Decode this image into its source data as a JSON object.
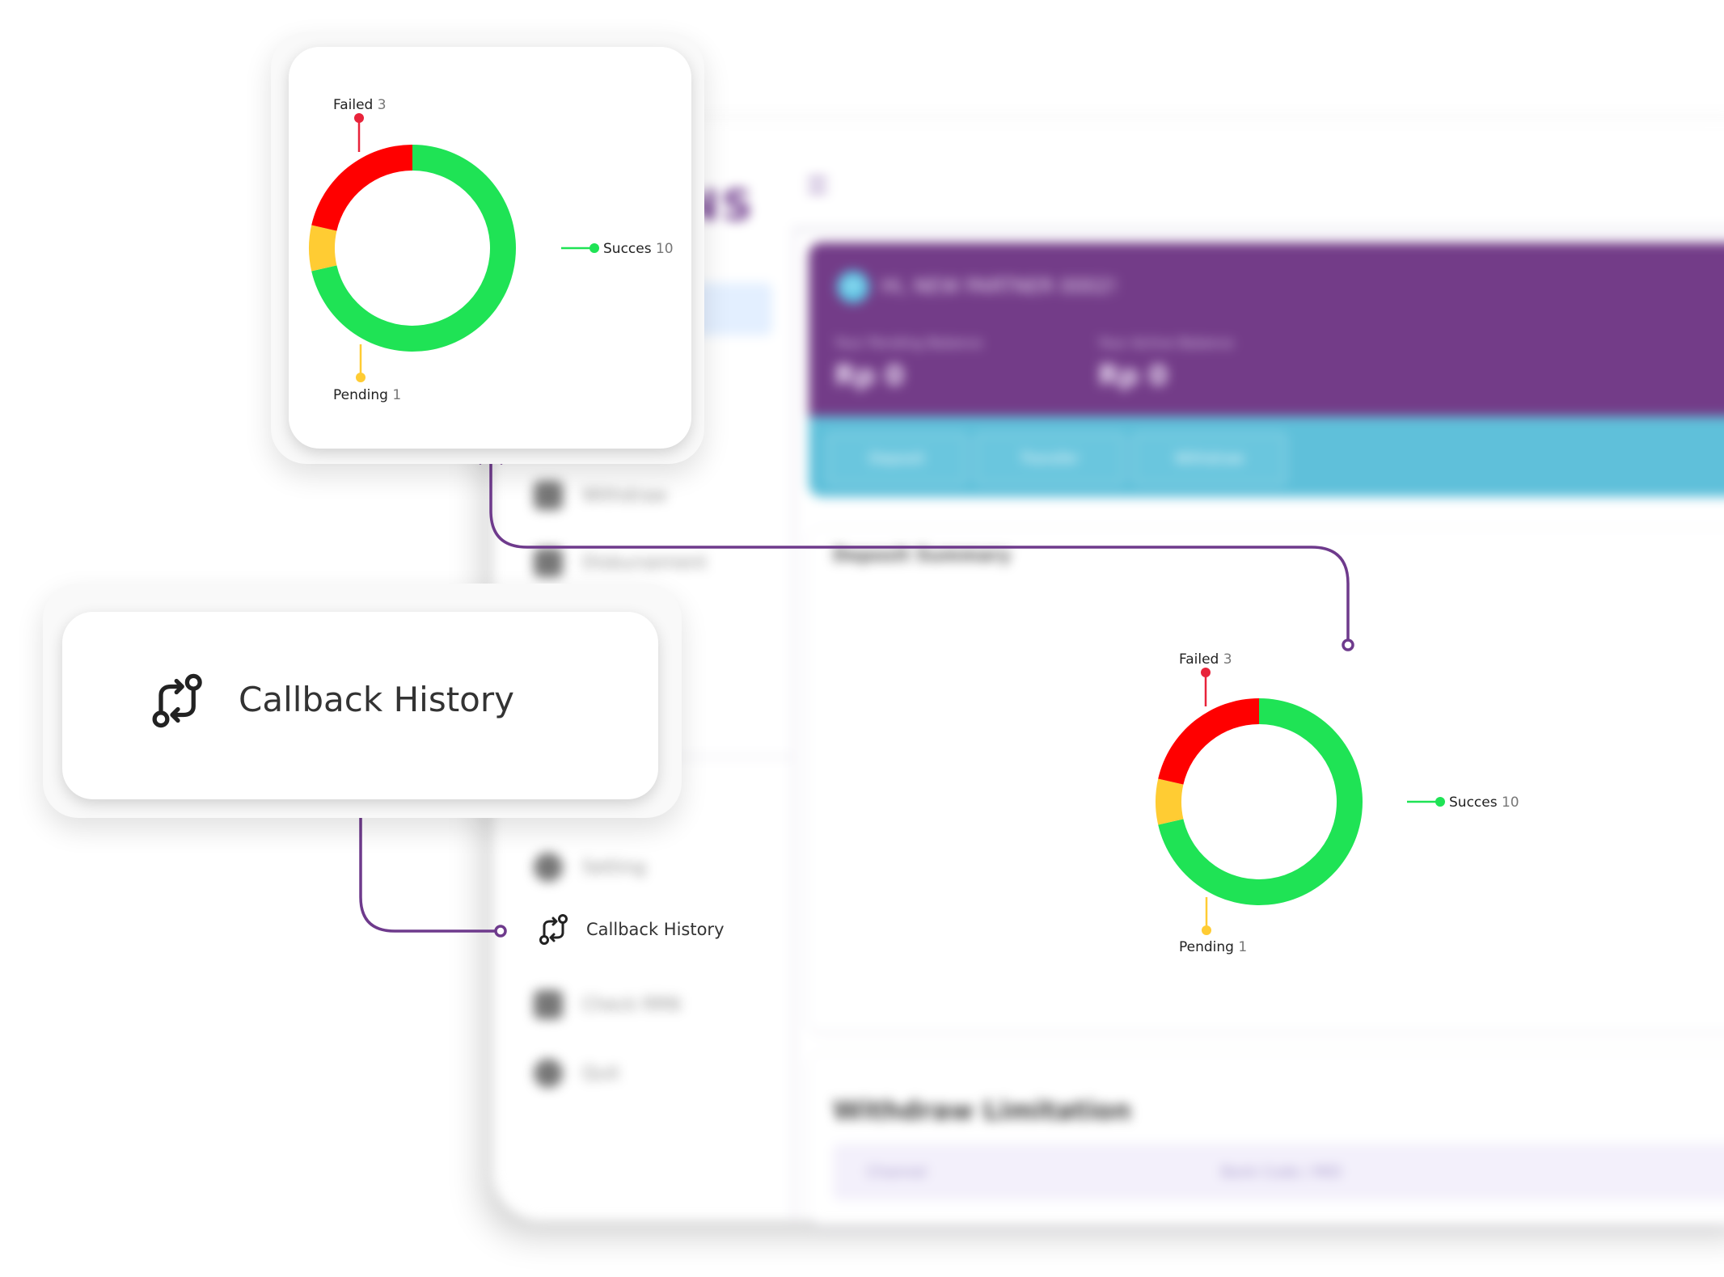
{
  "colors": {
    "success": "#1fe355",
    "failed": "#ff0000",
    "pending": "#ffcc33",
    "connector": "#6e3a8c",
    "hero": "#733c88",
    "action_bar": "#5fc0da"
  },
  "background_app": {
    "logo_text": "NS",
    "nav_items": [
      {
        "label": "Withdraw",
        "icon": "bank-icon"
      },
      {
        "label": "Disbursement",
        "icon": "disbursement-icon"
      },
      {
        "label": "Setting",
        "icon": "globe-icon"
      },
      {
        "label": "Check RRN",
        "icon": "calendar-icon"
      },
      {
        "label": "Quit",
        "icon": "logout-icon"
      }
    ],
    "hero": {
      "avatar_initials": "NP",
      "greeting": "Hi, NEW PARTNER 0002!",
      "pending_label": "Your Pending Balance",
      "pending_amount": "Rp 0",
      "active_label": "Your Active Balance",
      "active_amount": "Rp 0"
    },
    "actions": [
      "Deposit",
      "Transfer",
      "Withdraw"
    ],
    "summary_title": "Deposit Summary",
    "limit_title": "Withdraw Limitation",
    "limit_columns": [
      "Channel",
      "Bank Code / MID"
    ]
  },
  "sidebar_callback": {
    "label": "Callback History",
    "icon": "callback-swap-icon"
  },
  "popup_callback": {
    "label": "Callback History",
    "icon": "callback-swap-icon"
  },
  "chart_data": [
    {
      "type": "pie",
      "categories": [
        "Succes",
        "Pending",
        "Failed"
      ],
      "values": [
        10,
        1,
        3
      ],
      "labels": {
        "failed_name": "Failed",
        "failed_value": "3",
        "success_name": "Succes",
        "success_value": "10",
        "pending_name": "Pending",
        "pending_value": "1"
      }
    },
    {
      "type": "pie",
      "categories": [
        "Succes",
        "Pending",
        "Failed"
      ],
      "values": [
        10,
        1,
        3
      ],
      "labels": {
        "failed_name": "Failed",
        "failed_value": "3",
        "success_name": "Succes",
        "success_value": "10",
        "pending_name": "Pending",
        "pending_value": "1"
      }
    }
  ]
}
